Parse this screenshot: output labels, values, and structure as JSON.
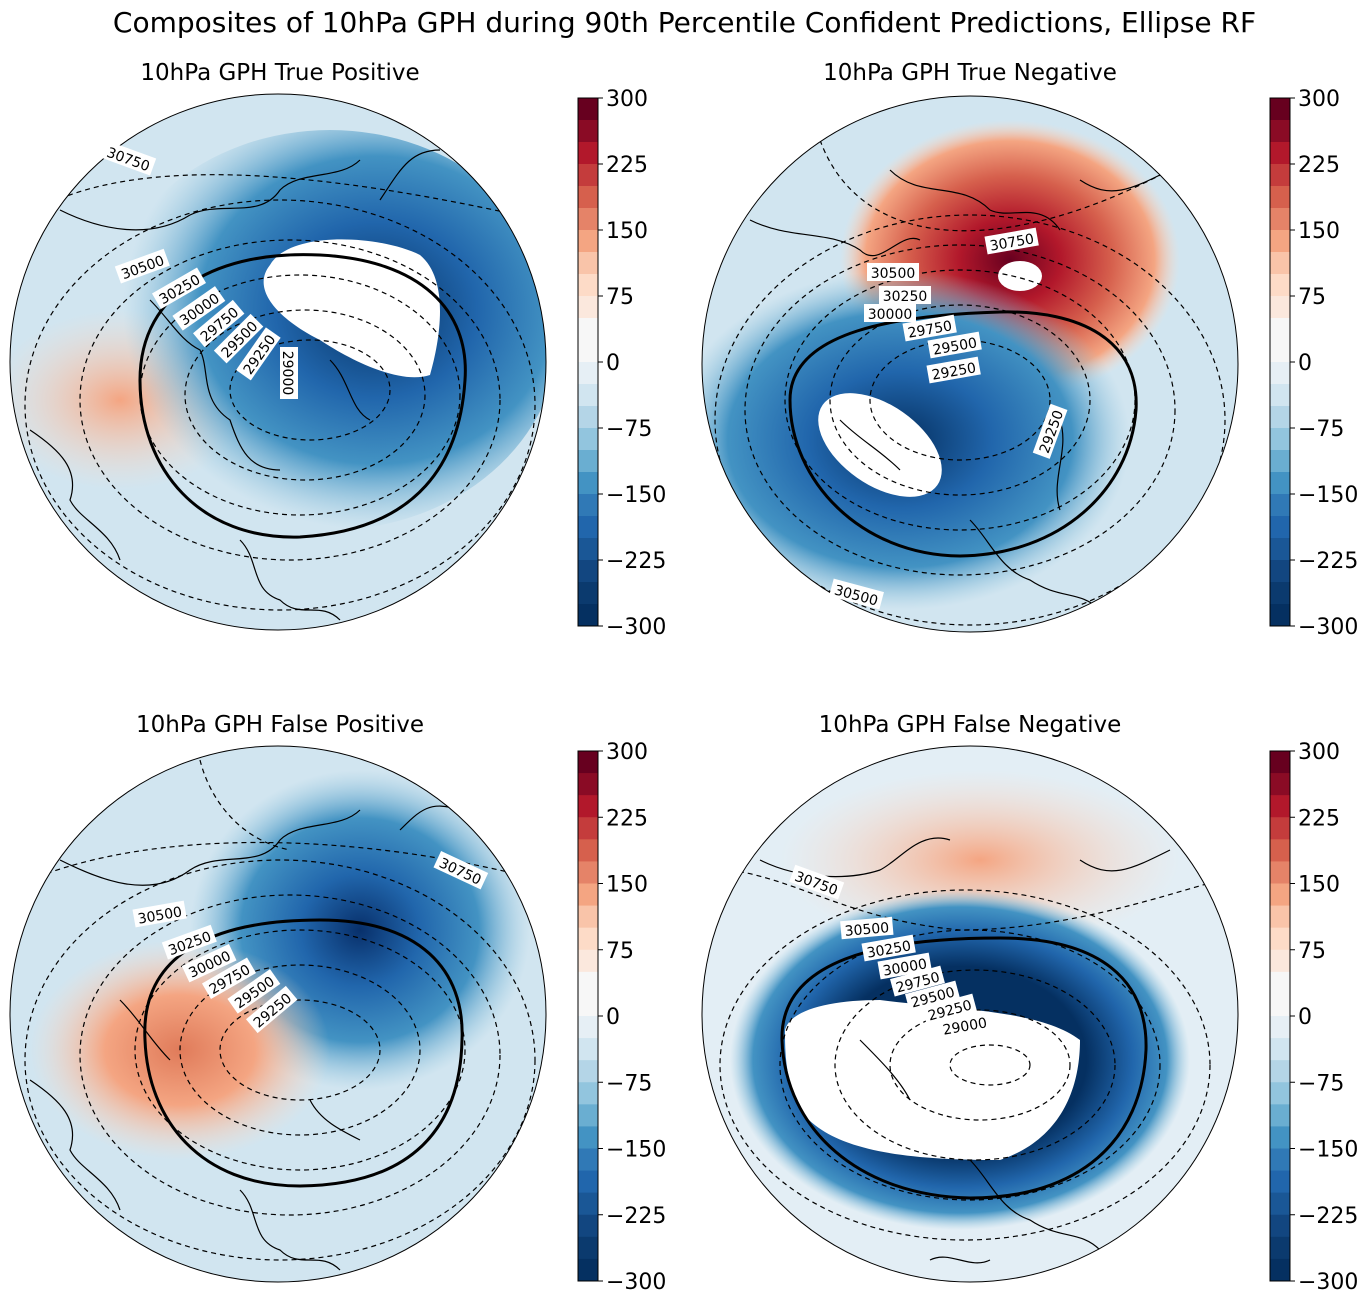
{
  "title": "Composites of 10hPa GPH during 90th Percentile Confident Predictions, Ellipse RF",
  "colorbar": {
    "ticks": [
      "300",
      "225",
      "150",
      "75",
      "0",
      "−75",
      "−150",
      "−225",
      "−300"
    ],
    "tick_values": [
      300,
      225,
      150,
      75,
      0,
      -75,
      -150,
      -225,
      -300
    ],
    "range": [
      -300,
      300
    ],
    "levels": 24,
    "colormap": "RdBu_r"
  },
  "panels": [
    {
      "title": "10hPa GPH True Positive",
      "contour_labels": [
        "30750",
        "30500",
        "30250",
        "30000",
        "29750",
        "29500",
        "29250",
        "29000"
      ]
    },
    {
      "title": "10hPa GPH True Negative",
      "contour_labels": [
        "30750",
        "30500",
        "30250",
        "30000",
        "29750",
        "29500",
        "29250",
        "29250",
        "30500"
      ]
    },
    {
      "title": "10hPa GPH False Positive",
      "contour_labels": [
        "30750",
        "30500",
        "30250",
        "30000",
        "29750",
        "29500",
        "29250"
      ]
    },
    {
      "title": "10hPa GPH False Negative",
      "contour_labels": [
        "30750",
        "30500",
        "30250",
        "30000",
        "29750",
        "29500",
        "29250",
        "29000"
      ]
    }
  ],
  "colors": {
    "deep_red": "#67001f",
    "red": "#c43c3c",
    "light_red": "#f4a582",
    "white": "#f7f7f7",
    "light_blue": "#92c5de",
    "blue": "#2166ac",
    "deep_blue": "#053061"
  }
}
